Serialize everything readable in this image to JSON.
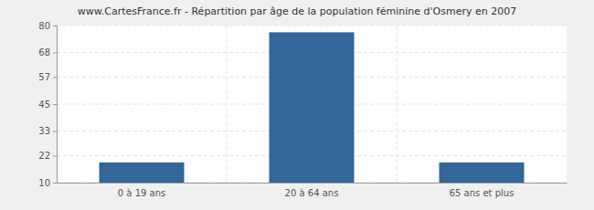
{
  "chart_data": {
    "type": "bar",
    "title": "www.CartesFrance.fr - Répartition par âge de la population féminine d'Osmery en 2007",
    "categories": [
      "0 à 19 ans",
      "20 à 64 ans",
      "65 ans et plus"
    ],
    "values": [
      19,
      77,
      19
    ],
    "color": "#336699",
    "ylim": [
      10,
      80
    ],
    "yticks": [
      10,
      22,
      33,
      45,
      57,
      68,
      80
    ],
    "grid": true
  }
}
